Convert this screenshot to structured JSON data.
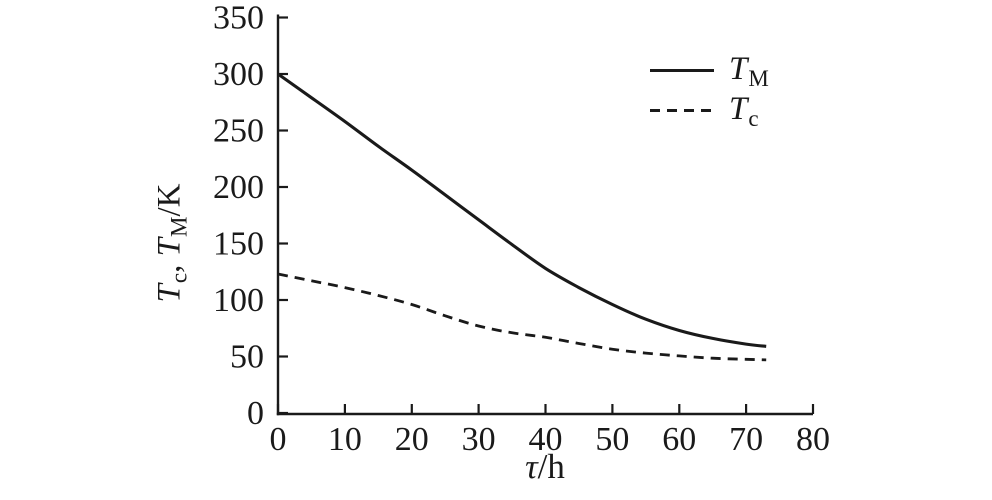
{
  "figure": {
    "background": "#ffffff",
    "ink_color": "#1a1a1a"
  },
  "chart_data": {
    "type": "line",
    "title": "",
    "xlabel": {
      "symbol": "τ",
      "rest": "/h",
      "text": "τ/h"
    },
    "ylabel": {
      "text": "Tc, TM/K",
      "parts": [
        {
          "t": "T"
        },
        {
          "t": "c"
        },
        {
          "t": ", "
        },
        {
          "t": "T"
        },
        {
          "t": "M"
        },
        {
          "t": "/K"
        }
      ]
    },
    "xlim": [
      0,
      80
    ],
    "ylim": [
      0,
      350
    ],
    "xticks": [
      0,
      10,
      20,
      30,
      40,
      50,
      60,
      70,
      80
    ],
    "yticks": [
      0,
      50,
      100,
      150,
      200,
      250,
      300,
      350
    ],
    "grid": false,
    "legend_position": "top-right",
    "series": [
      {
        "id": "TM",
        "label": {
          "base": "T",
          "sub": "M"
        },
        "line_style": "solid",
        "color": "#1a1a1a",
        "x": [
          0,
          5,
          10,
          15,
          20,
          25,
          30,
          35,
          40,
          45,
          50,
          55,
          60,
          65,
          70,
          73
        ],
        "y": [
          300,
          279,
          258,
          236,
          215,
          193,
          171,
          149,
          128,
          111,
          96,
          83,
          73,
          66,
          61,
          59
        ]
      },
      {
        "id": "Tc",
        "label": {
          "base": "T",
          "sub": "c"
        },
        "line_style": "dashed",
        "color": "#1a1a1a",
        "x": [
          0,
          5,
          10,
          15,
          20,
          25,
          30,
          35,
          40,
          45,
          50,
          55,
          60,
          65,
          70,
          73
        ],
        "y": [
          123,
          117,
          111,
          104,
          96,
          86,
          77,
          71,
          67,
          61.5,
          56.5,
          53,
          50.5,
          48.5,
          47.5,
          47
        ]
      }
    ]
  }
}
